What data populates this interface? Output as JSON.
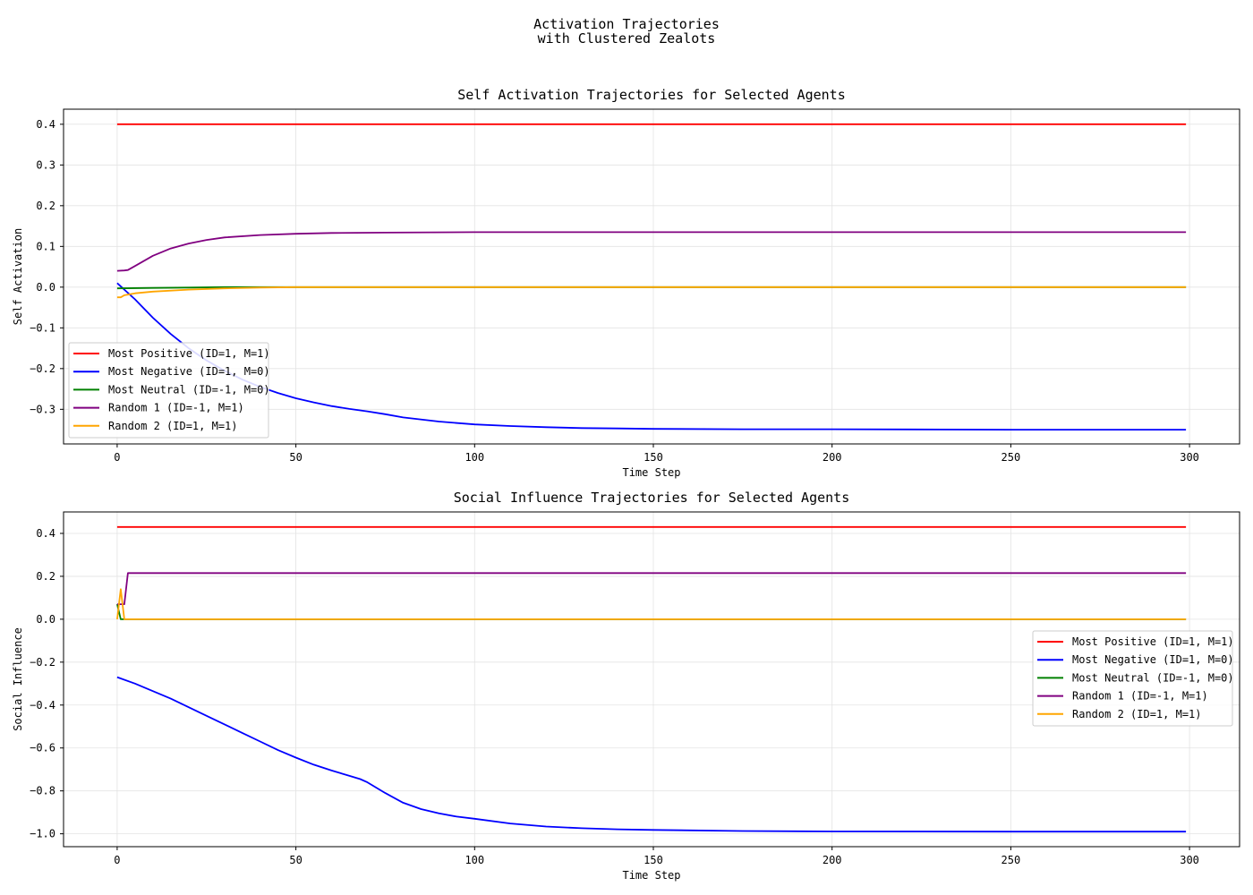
{
  "figure": {
    "suptitle_line1": "Activation Trajectories",
    "suptitle_line2": "with Clustered Zealots"
  },
  "colors": {
    "most_positive": "#ff0000",
    "most_negative": "#0000ff",
    "most_neutral": "#008000",
    "random_1": "#800080",
    "random_2": "#ffa500"
  },
  "chart_data": [
    {
      "type": "line",
      "title": "Self Activation Trajectories for Selected Agents",
      "xlabel": "Time Step",
      "ylabel": "Self Activation",
      "xlim": [
        -15,
        314
      ],
      "ylim": [
        -0.385,
        0.437
      ],
      "xticks": [
        0,
        50,
        100,
        150,
        200,
        250,
        300
      ],
      "yticks": [
        -0.3,
        -0.2,
        -0.1,
        0.0,
        0.1,
        0.2,
        0.3,
        0.4
      ],
      "ytick_labels": [
        "−0.3",
        "−0.2",
        "−0.1",
        "0.0",
        "0.1",
        "0.2",
        "0.3",
        "0.4"
      ],
      "grid": true,
      "legend_position": "lower-left",
      "series": [
        {
          "name": "Most Positive (ID=1, M=1)",
          "color_key": "most_positive",
          "x": [
            0,
            299
          ],
          "y": [
            0.4,
            0.4
          ]
        },
        {
          "name": "Most Negative (ID=1, M=0)",
          "color_key": "most_negative",
          "x": [
            0,
            5,
            10,
            15,
            20,
            25,
            30,
            35,
            40,
            45,
            50,
            55,
            60,
            65,
            70,
            75,
            80,
            90,
            100,
            110,
            120,
            130,
            140,
            150,
            175,
            200,
            250,
            299
          ],
          "y": [
            0.01,
            -0.03,
            -0.075,
            -0.115,
            -0.15,
            -0.18,
            -0.205,
            -0.227,
            -0.245,
            -0.26,
            -0.273,
            -0.283,
            -0.292,
            -0.299,
            -0.305,
            -0.312,
            -0.32,
            -0.33,
            -0.337,
            -0.341,
            -0.344,
            -0.346,
            -0.347,
            -0.348,
            -0.349,
            -0.349,
            -0.35,
            -0.35
          ]
        },
        {
          "name": "Most Neutral (ID=-1, M=0)",
          "color_key": "most_neutral",
          "x": [
            0,
            10,
            20,
            30,
            40,
            50,
            299
          ],
          "y": [
            -0.003,
            -0.002,
            -0.001,
            0.0,
            0.0,
            0.0,
            0.0
          ]
        },
        {
          "name": "Random 1 (ID=-1, M=1)",
          "color_key": "random_1",
          "x": [
            0,
            2,
            3,
            5,
            10,
            15,
            20,
            25,
            30,
            40,
            50,
            60,
            75,
            100,
            150,
            299
          ],
          "y": [
            0.04,
            0.041,
            0.042,
            0.052,
            0.077,
            0.095,
            0.107,
            0.116,
            0.122,
            0.128,
            0.131,
            0.133,
            0.134,
            0.135,
            0.135,
            0.135
          ]
        },
        {
          "name": "Random 2 (ID=1, M=1)",
          "color_key": "random_2",
          "x": [
            0,
            1,
            2,
            5,
            10,
            20,
            30,
            40,
            50,
            299
          ],
          "y": [
            -0.025,
            -0.025,
            -0.02,
            -0.015,
            -0.011,
            -0.006,
            -0.003,
            -0.001,
            0.0,
            0.0
          ]
        }
      ]
    },
    {
      "type": "line",
      "title": "Social Influence Trajectories for Selected Agents",
      "xlabel": "Time Step",
      "ylabel": "Social Influence",
      "xlim": [
        -15,
        314
      ],
      "ylim": [
        -1.06,
        0.5
      ],
      "xticks": [
        0,
        50,
        100,
        150,
        200,
        250,
        300
      ],
      "yticks": [
        -1.0,
        -0.8,
        -0.6,
        -0.4,
        -0.2,
        0.0,
        0.2,
        0.4
      ],
      "ytick_labels": [
        "−1.0",
        "−0.8",
        "−0.6",
        "−0.4",
        "−0.2",
        "0.0",
        "0.2",
        "0.4"
      ],
      "grid": true,
      "legend_position": "center-right",
      "series": [
        {
          "name": "Most Positive (ID=1, M=1)",
          "color_key": "most_positive",
          "x": [
            0,
            299
          ],
          "y": [
            0.43,
            0.43
          ]
        },
        {
          "name": "Most Negative (ID=1, M=0)",
          "color_key": "most_negative",
          "x": [
            0,
            5,
            10,
            15,
            20,
            25,
            30,
            35,
            40,
            45,
            50,
            55,
            60,
            65,
            68,
            70,
            75,
            80,
            85,
            90,
            95,
            100,
            110,
            120,
            130,
            140,
            150,
            175,
            200,
            250,
            299
          ],
          "y": [
            -0.27,
            -0.3,
            -0.335,
            -0.37,
            -0.41,
            -0.45,
            -0.49,
            -0.53,
            -0.57,
            -0.61,
            -0.645,
            -0.678,
            -0.705,
            -0.73,
            -0.745,
            -0.76,
            -0.81,
            -0.855,
            -0.885,
            -0.905,
            -0.92,
            -0.93,
            -0.952,
            -0.966,
            -0.974,
            -0.979,
            -0.982,
            -0.987,
            -0.989,
            -0.99,
            -0.99
          ]
        },
        {
          "name": "Most Neutral (ID=-1, M=0)",
          "color_key": "most_neutral",
          "x": [
            0,
            1,
            2,
            299
          ],
          "y": [
            0.07,
            0.0,
            0.0,
            0.0
          ]
        },
        {
          "name": "Random 1 (ID=-1, M=1)",
          "color_key": "random_1",
          "x": [
            0,
            2,
            3,
            299
          ],
          "y": [
            0.07,
            0.07,
            0.215,
            0.215
          ]
        },
        {
          "name": "Random 2 (ID=1, M=1)",
          "color_key": "random_2",
          "x": [
            0,
            1,
            2,
            299
          ],
          "y": [
            0.0,
            0.14,
            0.0,
            0.0
          ]
        }
      ]
    }
  ]
}
